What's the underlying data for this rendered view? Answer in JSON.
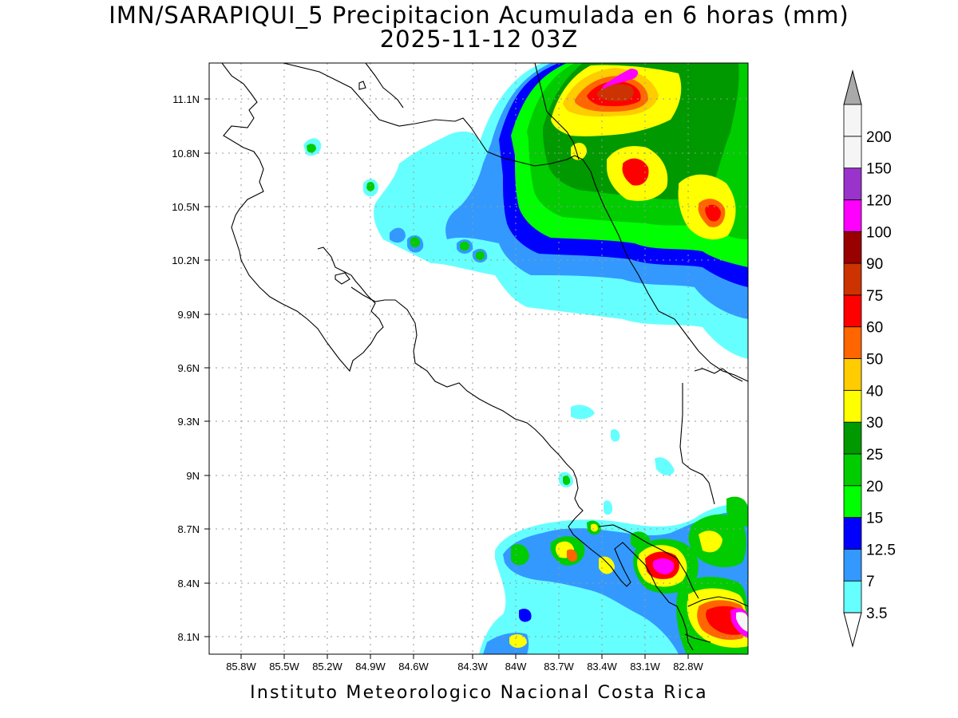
{
  "title": {
    "line1": "IMN/SARAPIQUI_5 Precipitacion Acumulada en 6 horas (mm)",
    "line2": "2025-11-12 03Z"
  },
  "credit": "Instituto Meteorologico Nacional Costa Rica",
  "axes": {
    "x_ticks": [
      "85.8W",
      "85.5W",
      "85.2W",
      "84.9W",
      "84.6W",
      "84.3W",
      "84W",
      "83.7W",
      "83.4W",
      "83.1W",
      "82.8W"
    ],
    "y_ticks": [
      "11.1N",
      "10.8N",
      "10.5N",
      "10.2N",
      "9.9N",
      "9.6N",
      "9.3N",
      "9N",
      "8.7N",
      "8.4N",
      "8.1N"
    ]
  },
  "colorbar": {
    "levels": [
      "3.5",
      "7",
      "12.5",
      "15",
      "20",
      "25",
      "30",
      "40",
      "50",
      "60",
      "75",
      "90",
      "100",
      "120",
      "150",
      "200"
    ],
    "colors": [
      "#66ffff",
      "#3399ff",
      "#0000ff",
      "#00ff00",
      "#00cc00",
      "#009900",
      "#ffff00",
      "#ffcc00",
      "#ff6600",
      "#ff0000",
      "#cc3300",
      "#990000",
      "#ff00ff",
      "#9933cc",
      "#f5f5f5",
      "#a9a9a9"
    ]
  }
}
